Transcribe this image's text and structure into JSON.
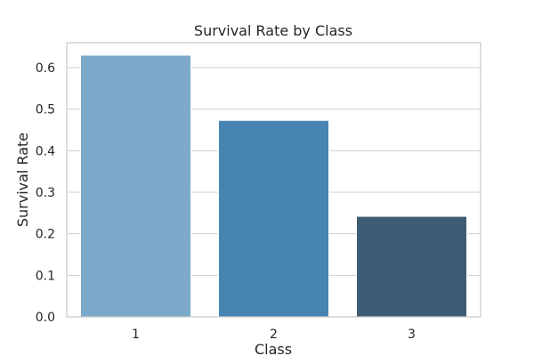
{
  "chart_data": {
    "type": "bar",
    "title": "Survival Rate by Class",
    "xlabel": "Class",
    "ylabel": "Survival Rate",
    "categories": [
      "1",
      "2",
      "3"
    ],
    "values": [
      0.63,
      0.473,
      0.242
    ],
    "ylim": [
      0,
      0.66
    ],
    "yticks": [
      "0.0",
      "0.1",
      "0.2",
      "0.3",
      "0.4",
      "0.5",
      "0.6"
    ],
    "grid": true,
    "colors": [
      "#7ba9ca",
      "#4884b2",
      "#3e5c73"
    ],
    "grid_color": "#d0d0d0",
    "frame_color": "#c8c8c8"
  }
}
